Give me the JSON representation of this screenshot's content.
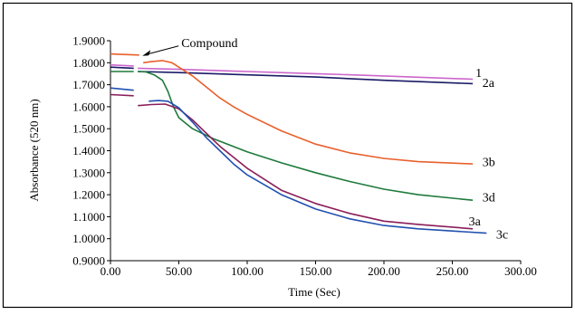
{
  "chart_data": {
    "type": "line",
    "xlabel": "Time (Sec)",
    "ylabel": "Absorbance (520 nm)",
    "xlim": [
      0,
      300
    ],
    "ylim": [
      0.9,
      1.9
    ],
    "x_ticks": [
      "0.00",
      "50.00",
      "100.00",
      "150.00",
      "200.00",
      "250.00",
      "300.00"
    ],
    "y_ticks": [
      "0.9000",
      "1.0000",
      "1.1000",
      "1.2000",
      "1.3000",
      "1.4000",
      "1.5000",
      "1.6000",
      "1.7000",
      "1.8000",
      "1.9000"
    ],
    "grid": false,
    "annotation": {
      "text": "Compound",
      "arrow_to": [
        22,
        1.835
      ]
    },
    "series": [
      {
        "name": "1",
        "color": "#cc66cc",
        "pre": [
          [
            0,
            1.79
          ],
          [
            17,
            1.785
          ]
        ],
        "main": [
          [
            20,
            1.775
          ],
          [
            50,
            1.77
          ],
          [
            100,
            1.76
          ],
          [
            150,
            1.75
          ],
          [
            200,
            1.74
          ],
          [
            265,
            1.725
          ]
        ]
      },
      {
        "name": "2a",
        "color": "#1a1a66",
        "pre": [
          [
            0,
            1.78
          ],
          [
            17,
            1.775
          ]
        ],
        "main": [
          [
            20,
            1.76
          ],
          [
            50,
            1.755
          ],
          [
            100,
            1.745
          ],
          [
            150,
            1.735
          ],
          [
            200,
            1.72
          ],
          [
            265,
            1.705
          ]
        ]
      },
      {
        "name": "3b",
        "color": "#e8602c",
        "pre": [
          [
            0,
            1.84
          ],
          [
            21,
            1.835
          ]
        ],
        "main": [
          [
            24,
            1.8
          ],
          [
            30,
            1.805
          ],
          [
            38,
            1.81
          ],
          [
            45,
            1.8
          ],
          [
            50,
            1.78
          ],
          [
            60,
            1.74
          ],
          [
            70,
            1.69
          ],
          [
            80,
            1.64
          ],
          [
            90,
            1.6
          ],
          [
            100,
            1.565
          ],
          [
            125,
            1.49
          ],
          [
            150,
            1.43
          ],
          [
            175,
            1.39
          ],
          [
            200,
            1.365
          ],
          [
            225,
            1.35
          ],
          [
            265,
            1.34
          ]
        ]
      },
      {
        "name": "3d",
        "color": "#1e7a3c",
        "pre": [
          [
            0,
            1.76
          ],
          [
            17,
            1.76
          ]
        ],
        "main": [
          [
            20,
            1.76
          ],
          [
            26,
            1.758
          ],
          [
            32,
            1.745
          ],
          [
            38,
            1.72
          ],
          [
            42,
            1.67
          ],
          [
            46,
            1.6
          ],
          [
            50,
            1.55
          ],
          [
            60,
            1.5
          ],
          [
            75,
            1.455
          ],
          [
            100,
            1.395
          ],
          [
            125,
            1.345
          ],
          [
            150,
            1.3
          ],
          [
            175,
            1.26
          ],
          [
            200,
            1.225
          ],
          [
            225,
            1.2
          ],
          [
            265,
            1.175
          ]
        ]
      },
      {
        "name": "3a",
        "color": "#8a1e5a",
        "pre": [
          [
            0,
            1.655
          ],
          [
            17,
            1.65
          ]
        ],
        "main": [
          [
            20,
            1.605
          ],
          [
            30,
            1.61
          ],
          [
            40,
            1.612
          ],
          [
            50,
            1.59
          ],
          [
            60,
            1.54
          ],
          [
            70,
            1.48
          ],
          [
            80,
            1.42
          ],
          [
            90,
            1.37
          ],
          [
            100,
            1.32
          ],
          [
            125,
            1.22
          ],
          [
            150,
            1.16
          ],
          [
            175,
            1.115
          ],
          [
            200,
            1.08
          ],
          [
            225,
            1.065
          ],
          [
            265,
            1.045
          ]
        ]
      },
      {
        "name": "3c",
        "color": "#2050b0",
        "pre": [
          [
            0,
            1.685
          ],
          [
            17,
            1.675
          ]
        ],
        "main": [
          [
            28,
            1.625
          ],
          [
            35,
            1.628
          ],
          [
            42,
            1.625
          ],
          [
            50,
            1.595
          ],
          [
            60,
            1.53
          ],
          [
            70,
            1.46
          ],
          [
            80,
            1.4
          ],
          [
            90,
            1.34
          ],
          [
            100,
            1.29
          ],
          [
            125,
            1.2
          ],
          [
            150,
            1.135
          ],
          [
            175,
            1.09
          ],
          [
            200,
            1.06
          ],
          [
            225,
            1.045
          ],
          [
            250,
            1.035
          ],
          [
            275,
            1.025
          ]
        ]
      }
    ],
    "label_positions": [
      {
        "text": "1",
        "x": 267,
        "y": 1.735
      },
      {
        "text": "2a",
        "x": 272,
        "y": 1.69
      },
      {
        "text": "3b",
        "x": 272,
        "y": 1.33
      },
      {
        "text": "3d",
        "x": 272,
        "y": 1.17
      },
      {
        "text": "3a",
        "x": 262,
        "y": 1.06
      },
      {
        "text": "3c",
        "x": 282,
        "y": 1.0
      }
    ]
  }
}
